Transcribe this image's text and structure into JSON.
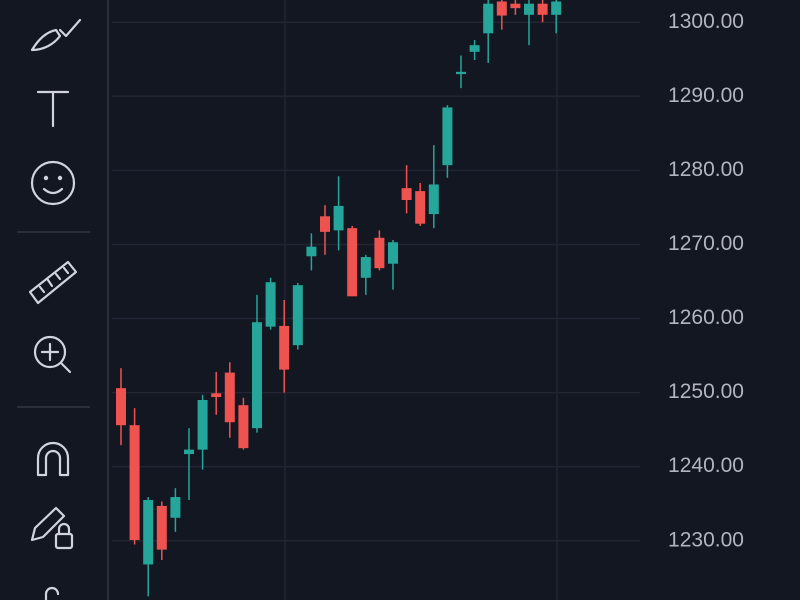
{
  "chart_data": {
    "type": "candlestick",
    "open": [
      1250.6,
      1245.6,
      1226.8,
      1234.7,
      1233.1,
      1241.7,
      1242.3,
      1249.9,
      1252.7,
      1248.3,
      1245.2,
      1258.9,
      1259.0,
      1256.4,
      1268.4,
      1273.8,
      1271.9,
      1272.2,
      1265.5,
      1270.9,
      1267.4,
      1277.6,
      1277.2,
      1274.1,
      1280.7,
      1293.0,
      1296.0,
      1298.5,
      1302.8,
      1302.5,
      1301.0,
      1302.5,
      1301.0
    ],
    "high": [
      1253.3,
      1247.9,
      1235.9,
      1235.3,
      1237.1,
      1245.2,
      1249.7,
      1252.8,
      1254.1,
      1249.3,
      1263.2,
      1265.5,
      1262.5,
      1264.8,
      1271.5,
      1275.3,
      1279.2,
      1272.5,
      1268.6,
      1271.9,
      1270.6,
      1280.7,
      1278.3,
      1283.4,
      1288.8,
      1295.5,
      1297.6,
      1303.0,
      1303.0,
      1303.0,
      1303.0,
      1303.0,
      1303.0
    ],
    "low": [
      1242.9,
      1229.5,
      1222.5,
      1227.4,
      1231.2,
      1235.5,
      1239.6,
      1247.0,
      1243.9,
      1242.3,
      1244.6,
      1258.5,
      1250.0,
      1255.8,
      1266.5,
      1268.6,
      1269.2,
      1263.0,
      1263.2,
      1266.5,
      1263.9,
      1274.2,
      1272.5,
      1272.2,
      1279.0,
      1291.1,
      1294.9,
      1294.5,
      1299.0,
      1301.0,
      1296.9,
      1300.0,
      1298.5
    ],
    "close": [
      1245.6,
      1230.1,
      1235.5,
      1228.8,
      1235.9,
      1242.3,
      1249.0,
      1249.4,
      1246.0,
      1242.5,
      1259.5,
      1264.9,
      1253.1,
      1264.5,
      1269.7,
      1271.7,
      1275.2,
      1263.0,
      1268.3,
      1266.8,
      1270.3,
      1276.0,
      1272.8,
      1278.1,
      1288.5,
      1293.3,
      1296.9,
      1302.5,
      1300.9,
      1301.9,
      1302.5,
      1301.0,
      1302.8
    ],
    "up_color": "#26a69a",
    "down_color": "#ef5350",
    "ylim": [
      1222,
      1303
    ],
    "yticks": [
      {
        "value": 1230,
        "label": "1230.00"
      },
      {
        "value": 1240,
        "label": "1240.00"
      },
      {
        "value": 1250,
        "label": "1250.00"
      },
      {
        "value": 1260,
        "label": "1260.00"
      },
      {
        "value": 1270,
        "label": "1270.00"
      },
      {
        "value": 1280,
        "label": "1280.00"
      },
      {
        "value": 1290,
        "label": "1290.00"
      },
      {
        "value": 1300,
        "label": "1300.00"
      }
    ],
    "grid": true
  }
}
